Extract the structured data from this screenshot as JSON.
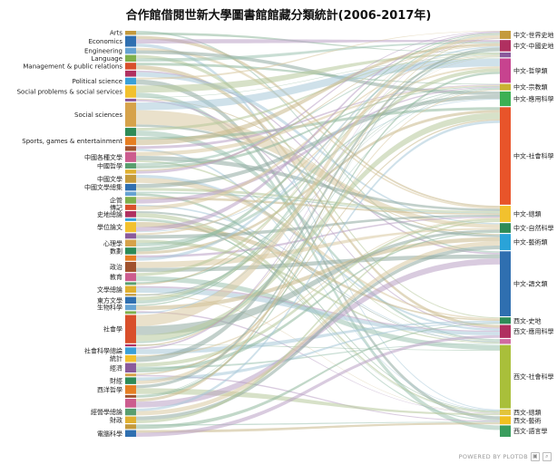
{
  "chart_data": {
    "type": "sankey",
    "title": "合作館借閱世新大學圖書館館藏分類統計(2006-2017年)",
    "sources": [
      {
        "name": "Arts",
        "value": 0.6
      },
      {
        "name": "Economics",
        "value": 1.6
      },
      {
        "name": "Engineering",
        "value": 0.9
      },
      {
        "name": "Language",
        "value": 1.0
      },
      {
        "name": "Management & public relations",
        "value": 1.0
      },
      {
        "name": "",
        "value": 0.9
      },
      {
        "name": "Political science",
        "value": 1.0
      },
      {
        "name": "Social problems & social services",
        "value": 1.8
      },
      {
        "name": "",
        "value": 0.4
      },
      {
        "name": "Social sciences",
        "value": 3.6
      },
      {
        "name": "",
        "value": 1.2
      },
      {
        "name": "Sports, games & entertainment",
        "value": 1.2
      },
      {
        "name": "",
        "value": 0.7
      },
      {
        "name": "中國各種文學",
        "value": 1.5
      },
      {
        "name": "中國哲學",
        "value": 0.8
      },
      {
        "name": "",
        "value": 0.6
      },
      {
        "name": "中國文學",
        "value": 1.2
      },
      {
        "name": "中國文學總集",
        "value": 1.0
      },
      {
        "name": "",
        "value": 0.6
      },
      {
        "name": "企管",
        "value": 1.0
      },
      {
        "name": "傳記",
        "value": 0.8
      },
      {
        "name": "史地總論",
        "value": 0.9
      },
      {
        "name": "",
        "value": 0.4
      },
      {
        "name": "學位論文",
        "value": 1.5
      },
      {
        "name": "",
        "value": 0.8
      },
      {
        "name": "心理學",
        "value": 1.0
      },
      {
        "name": "數劃",
        "value": 1.0
      },
      {
        "name": "",
        "value": 0.8
      },
      {
        "name": "政治",
        "value": 1.5
      },
      {
        "name": "教育",
        "value": 1.2
      },
      {
        "name": "",
        "value": 0.4
      },
      {
        "name": "文學總論",
        "value": 1.0
      },
      {
        "name": "",
        "value": 0.3
      },
      {
        "name": "東方文學",
        "value": 1.0
      },
      {
        "name": "生物科學",
        "value": 0.8
      },
      {
        "name": "",
        "value": 0.4
      },
      {
        "name": "社會學",
        "value": 4.2
      },
      {
        "name": "",
        "value": 0.3
      },
      {
        "name": "社會科學總論",
        "value": 1.0
      },
      {
        "name": "統計",
        "value": 1.0
      },
      {
        "name": "經濟",
        "value": 1.4
      },
      {
        "name": "",
        "value": 0.4
      },
      {
        "name": "財經",
        "value": 1.0
      },
      {
        "name": "西洋哲學",
        "value": 1.3
      },
      {
        "name": "",
        "value": 0.4
      },
      {
        "name": "",
        "value": 1.3
      },
      {
        "name": "經營學總論",
        "value": 1.0
      },
      {
        "name": "財政",
        "value": 1.0
      },
      {
        "name": "",
        "value": 0.7
      },
      {
        "name": "電腦科學",
        "value": 1.0
      }
    ],
    "targets": [
      {
        "name": "中文-世界史地",
        "value": 1.0
      },
      {
        "name": "中文-中國史地",
        "value": 1.4
      },
      {
        "name": "",
        "value": 0.6
      },
      {
        "name": "中文-哲學類",
        "value": 3.0
      },
      {
        "name": "中文-宗教類",
        "value": 0.8
      },
      {
        "name": "中文-應用科學",
        "value": 1.8
      },
      {
        "name": "中文-社會科學",
        "value": 12.0
      },
      {
        "name": "中文-總類",
        "value": 2.0
      },
      {
        "name": "中文-自然科學",
        "value": 1.2
      },
      {
        "name": "中文-藝術類",
        "value": 2.0
      },
      {
        "name": "中文-語文類",
        "value": 8.0
      },
      {
        "name": "西文-史地",
        "value": 0.8
      },
      {
        "name": "西文-應用科學",
        "value": 1.6
      },
      {
        "name": "",
        "value": 0.6
      },
      {
        "name": "西文-社會科學",
        "value": 7.8
      },
      {
        "name": "西文-總類",
        "value": 0.7
      },
      {
        "name": "西文-藝術",
        "value": 1.0
      },
      {
        "name": "西文-語言學",
        "value": 1.4
      }
    ]
  }
}
